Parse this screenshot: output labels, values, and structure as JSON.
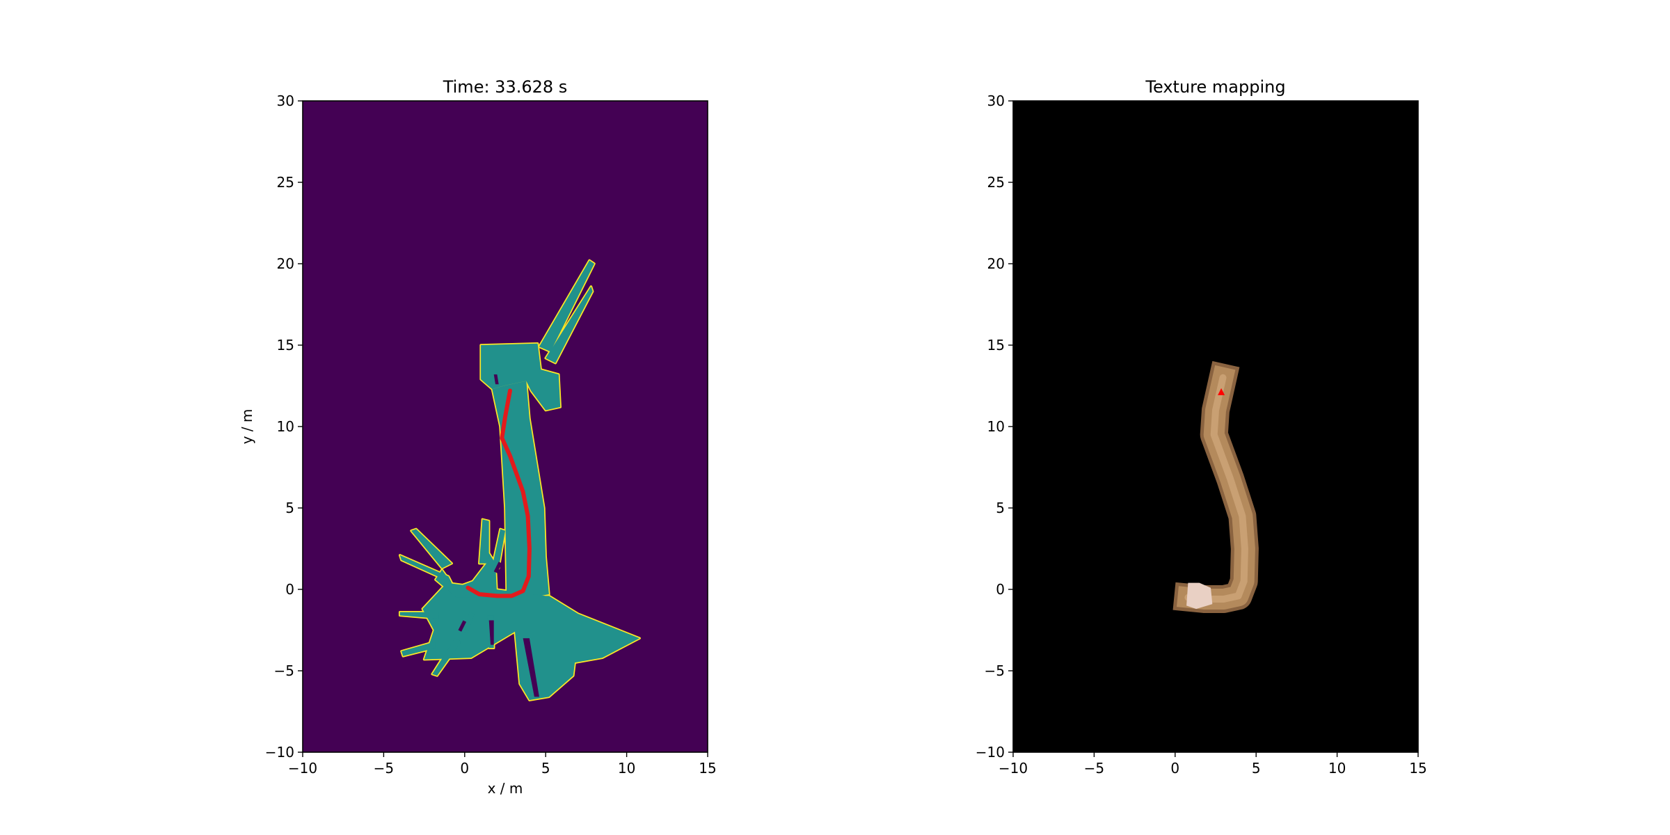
{
  "colors": {
    "free": "#21918c",
    "unknown": "#440154",
    "wall": "#fde725",
    "trajectory": "#e31a1c",
    "texture_bg": "#000000",
    "texture": "#b48a5c",
    "texture_light": "#e9d0c4"
  },
  "chart_data": [
    {
      "type": "heatmap",
      "title": "Time: 33.628 s",
      "xlabel": "x / m",
      "ylabel": "y / m",
      "xlim": [
        -10,
        15
      ],
      "ylim": [
        -10,
        30
      ],
      "xticks": [
        -10,
        -5,
        0,
        5,
        10,
        15
      ],
      "yticks": [
        -10,
        -5,
        0,
        5,
        10,
        15,
        20,
        25,
        30
      ],
      "xtick_labels": [
        "−10",
        "−5",
        "0",
        "5",
        "10",
        "15"
      ],
      "ytick_labels": [
        "−10",
        "−5",
        "0",
        "5",
        "10",
        "15",
        "20",
        "25",
        "30"
      ],
      "grid": false,
      "map_regions": {
        "corridor": [
          [
            2.4,
            12.5
          ],
          [
            3.8,
            12.8
          ],
          [
            4.0,
            10.5
          ],
          [
            4.9,
            5.0
          ],
          [
            5.0,
            2.0
          ],
          [
            5.2,
            -0.3
          ],
          [
            3.6,
            -0.6
          ],
          [
            2.6,
            -0.6
          ],
          [
            2.5,
            5.0
          ],
          [
            2.2,
            10.0
          ],
          [
            1.7,
            12.3
          ]
        ],
        "top_room": [
          [
            1.0,
            15.0
          ],
          [
            4.5,
            15.1
          ],
          [
            4.7,
            13.5
          ],
          [
            5.8,
            13.2
          ],
          [
            5.9,
            11.2
          ],
          [
            5.0,
            11.0
          ],
          [
            4.1,
            12.2
          ],
          [
            3.8,
            12.8
          ],
          [
            2.4,
            12.5
          ],
          [
            1.7,
            12.3
          ],
          [
            1.0,
            12.9
          ]
        ],
        "lower_hall": [
          [
            -1.1,
            0.4
          ],
          [
            5.0,
            -0.4
          ],
          [
            5.2,
            -0.4
          ],
          [
            7.0,
            -1.5
          ],
          [
            10.8,
            -3.0
          ],
          [
            8.5,
            -4.2
          ],
          [
            6.8,
            -4.5
          ],
          [
            6.7,
            -5.3
          ],
          [
            5.2,
            -6.6
          ],
          [
            4.0,
            -6.8
          ],
          [
            3.4,
            -5.8
          ],
          [
            3.1,
            -2.6
          ],
          [
            0.4,
            -4.2
          ],
          [
            -2.5,
            -4.3
          ],
          [
            -1.9,
            -2.5
          ],
          [
            -2.6,
            -1.2
          ]
        ],
        "left_room": [
          [
            -1.4,
            1.2
          ],
          [
            -0.6,
            0.1
          ],
          [
            0.5,
            0.5
          ],
          [
            1.5,
            1.8
          ],
          [
            1.2,
            2.7
          ],
          [
            1.9,
            1.6
          ],
          [
            2.0,
            -0.5
          ],
          [
            -0.5,
            -0.5
          ],
          [
            -1.8,
            0.6
          ]
        ],
        "rays": [
          [
            [
              4.6,
              14.9
            ],
            [
              7.7,
              20.2
            ],
            [
              8.0,
              20.0
            ],
            [
              5.3,
              14.6
            ]
          ],
          [
            [
              5.0,
              14.2
            ],
            [
              7.8,
              18.6
            ],
            [
              7.9,
              18.3
            ],
            [
              5.6,
              13.9
            ]
          ],
          [
            [
              -1.4,
              1.3
            ],
            [
              -3.3,
              3.6
            ],
            [
              -3.0,
              3.7
            ],
            [
              -0.8,
              1.6
            ]
          ],
          [
            [
              -1.0,
              0.8
            ],
            [
              -4.0,
              2.1
            ],
            [
              -3.9,
              1.8
            ],
            [
              -0.8,
              0.4
            ]
          ],
          [
            [
              0.9,
              1.6
            ],
            [
              1.1,
              4.3
            ],
            [
              1.5,
              4.2
            ],
            [
              1.5,
              1.6
            ]
          ],
          [
            [
              1.7,
              1.4
            ],
            [
              2.2,
              3.7
            ],
            [
              2.5,
              3.6
            ],
            [
              2.1,
              1.3
            ]
          ],
          [
            [
              -1.6,
              -1.4
            ],
            [
              -4.0,
              -1.4
            ],
            [
              -4.0,
              -1.6
            ],
            [
              -1.6,
              -1.8
            ]
          ],
          [
            [
              -1.8,
              -3.2
            ],
            [
              -3.9,
              -3.8
            ],
            [
              -3.8,
              -4.1
            ],
            [
              -1.8,
              -3.6
            ]
          ],
          [
            [
              -0.6,
              -3.0
            ],
            [
              -2.0,
              -5.2
            ],
            [
              -1.7,
              -5.3
            ],
            [
              -0.2,
              -3.2
            ]
          ],
          [
            [
              1.4,
              -1.6
            ],
            [
              1.5,
              -3.6
            ],
            [
              1.8,
              -3.6
            ],
            [
              1.8,
              -1.6
            ]
          ],
          [
            [
              0.3,
              -1.4
            ],
            [
              -0.2,
              -2.6
            ],
            [
              0.2,
              -2.7
            ],
            [
              0.6,
              -1.5
            ]
          ]
        ],
        "dark_streaks": [
          [
            [
              3.6,
              -3.0
            ],
            [
              4.3,
              -6.6
            ],
            [
              4.6,
              -6.6
            ],
            [
              4.0,
              -3.0
            ]
          ],
          [
            [
              1.5,
              -1.9
            ],
            [
              1.6,
              -3.4
            ],
            [
              1.8,
              -3.4
            ],
            [
              1.8,
              -1.9
            ]
          ],
          [
            [
              -0.1,
              -1.9
            ],
            [
              -0.4,
              -2.5
            ],
            [
              -0.2,
              -2.6
            ],
            [
              0.1,
              -2.0
            ]
          ],
          [
            [
              1.8,
              1.1
            ],
            [
              2.1,
              1.7
            ],
            [
              2.3,
              1.6
            ],
            [
              2.0,
              1.0
            ]
          ],
          [
            [
              1.8,
              13.2
            ],
            [
              1.9,
              12.6
            ],
            [
              2.1,
              12.6
            ],
            [
              2.0,
              13.2
            ]
          ]
        ]
      },
      "trajectory": {
        "x": [
          0.2,
          0.9,
          2.0,
          2.9,
          3.6,
          3.95,
          4.0,
          3.9,
          3.6,
          2.8,
          2.3,
          2.5,
          2.8
        ],
        "y": [
          0.1,
          -0.3,
          -0.4,
          -0.4,
          -0.1,
          0.8,
          2.5,
          4.5,
          6.0,
          8.2,
          9.3,
          10.6,
          12.2
        ]
      }
    },
    {
      "type": "heatmap",
      "title": "Texture mapping",
      "xlim": [
        -10,
        15
      ],
      "ylim": [
        -10,
        30
      ],
      "xticks": [
        -10,
        -5,
        0,
        5,
        10,
        15
      ],
      "yticks": [
        -10,
        -5,
        0,
        5,
        10,
        15,
        20,
        25,
        30
      ],
      "xtick_labels": [
        "−10",
        "−5",
        "0",
        "5",
        "10",
        "15"
      ],
      "ytick_labels": [
        "−10",
        "−5",
        "0",
        "5",
        "10",
        "15",
        "20",
        "25",
        "30"
      ],
      "grid": false,
      "texture_path": {
        "x": [
          0.8,
          1.8,
          3.0,
          3.9,
          4.25,
          4.3,
          4.15,
          3.4,
          2.4,
          2.5,
          2.95
        ],
        "y": [
          -0.5,
          -0.6,
          -0.6,
          -0.4,
          0.5,
          2.5,
          4.5,
          6.8,
          9.5,
          11.0,
          13.0
        ]
      },
      "light_patch": [
        [
          0.8,
          0.4
        ],
        [
          1.5,
          0.4
        ],
        [
          2.2,
          0.1
        ],
        [
          2.3,
          -0.9
        ],
        [
          1.3,
          -1.2
        ],
        [
          0.7,
          -1.0
        ]
      ],
      "marker": {
        "x": 2.85,
        "y": 12.1
      }
    }
  ]
}
